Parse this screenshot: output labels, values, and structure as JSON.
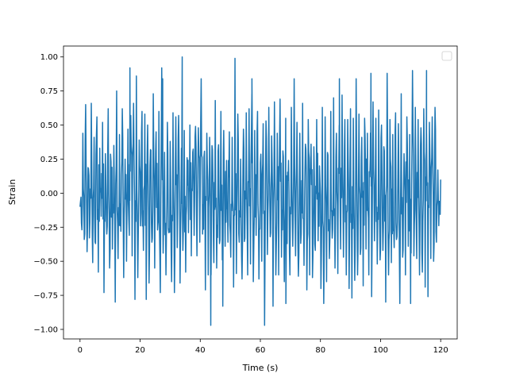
{
  "chart_data": {
    "type": "line",
    "title": "",
    "xlabel": "Time (s)",
    "ylabel": "Strain",
    "xlim": [
      -5.5,
      125.5
    ],
    "ylim": [
      -1.07,
      1.08
    ],
    "x_ticks": [
      0,
      20,
      40,
      60,
      80,
      100,
      120
    ],
    "x_tick_labels": [
      "0",
      "20",
      "40",
      "60",
      "80",
      "100",
      "120"
    ],
    "y_ticks": [
      -1.0,
      -0.75,
      -0.5,
      -0.25,
      0.0,
      0.25,
      0.5,
      0.75,
      1.0
    ],
    "y_tick_labels": [
      "−1.00",
      "−0.75",
      "−0.50",
      "−0.25",
      "0.00",
      "0.25",
      "0.50",
      "0.75",
      "1.00"
    ],
    "grid": false,
    "legend": {
      "placement": "top-right",
      "entries": []
    },
    "series": [
      {
        "color": "#1f77b4",
        "x_start": 0,
        "x_end": 120,
        "y_min": -0.97,
        "y_max": 1.0,
        "peak_points": [
          [
            34,
            1.0
          ],
          [
            43.5,
            -0.97
          ],
          [
            16.6,
            0.92
          ],
          [
            27.5,
            0.84
          ],
          [
            57.2,
            0.84
          ],
          [
            96.8,
            0.88
          ],
          [
            115.3,
            0.9
          ],
          [
            86.3,
            0.84
          ],
          [
            47.5,
            -0.83
          ],
          [
            68.5,
            -0.81
          ],
          [
            110,
            -0.81
          ]
        ],
        "values": [
          -0.1,
          -0.22,
          0.44,
          -0.34,
          0.65,
          -0.43,
          0.18,
          -0.21,
          0.66,
          -0.51,
          0.41,
          -0.37,
          0.56,
          -0.58,
          0.33,
          -0.17,
          0.52,
          -0.73,
          0.29,
          -0.3,
          0.62,
          -0.55,
          0.23,
          -0.41,
          0.35,
          -0.8,
          0.75,
          -0.48,
          0.43,
          -0.28,
          0.62,
          -0.62,
          0.25,
          -0.5,
          0.47,
          -0.31,
          0.57,
          -0.46,
          0.66,
          -0.78,
          0.86,
          -0.62,
          0.39,
          -0.24,
          0.6,
          -0.42,
          0.58,
          -0.78,
          0.5,
          -0.66,
          0.32,
          -0.36,
          0.73,
          -0.55,
          0.45,
          -0.27,
          0.6,
          -0.73,
          0.92,
          -0.44,
          0.3,
          -0.6,
          0.52,
          -0.29,
          0.38,
          -0.65,
          0.59,
          -0.73,
          0.56,
          -0.4,
          0.57,
          -0.66,
          0.33,
          -0.42,
          0.46,
          -0.58,
          0.26,
          -0.29,
          0.5,
          -0.46,
          0.3,
          -0.31,
          0.49,
          -0.46,
          0.48,
          -0.36,
          0.84,
          -0.3,
          0.27,
          -0.71,
          0.44,
          -0.6,
          0.41,
          -0.6,
          0.32,
          -0.51,
          0.68,
          -0.55,
          0.31,
          -0.37,
          0.6,
          -0.49,
          0.46,
          -0.39,
          0.24,
          -0.36,
          0.45,
          -0.47,
          0.41,
          -0.69,
          0.99,
          -0.59,
          0.58,
          -0.36,
          0.25,
          -0.63,
          0.47,
          -0.33,
          0.59,
          -0.6,
          0.62,
          -0.52,
          0.73,
          -0.65,
          0.46,
          -0.31,
          0.6,
          -0.63,
          0.22,
          -0.5,
          0.51,
          -0.97,
          0.53,
          -0.45,
          0.63,
          -0.32,
          0.42,
          -0.83,
          0.67,
          -0.6,
          0.44,
          -0.6,
          0.69,
          -0.47,
          0.31,
          -0.65,
          0.55,
          -0.37,
          0.24,
          -0.6,
          0.63,
          -0.39,
          0.84,
          -0.46,
          0.52,
          -0.61,
          0.44,
          -0.3,
          0.66,
          -0.53,
          0.36,
          -0.71,
          0.54,
          -0.6,
          0.36,
          -0.62,
          0.34,
          -0.42,
          0.54,
          -0.35,
          0.2,
          -0.7,
          0.63,
          -0.81,
          0.56,
          -0.65,
          0.28,
          -0.48,
          0.6,
          -0.33,
          0.7,
          -0.55,
          0.44,
          -0.59,
          0.5,
          -0.41,
          0.72,
          -0.47,
          0.54,
          -0.6,
          0.54,
          -0.7,
          0.62,
          -0.77,
          0.55,
          -0.64,
          0.84,
          -0.6,
          0.58,
          -0.45,
          0.41,
          -0.68,
          0.55,
          -0.41,
          0.44,
          -0.6,
          0.25,
          -0.76,
          0.67,
          -0.35,
          0.55,
          -0.52,
          0.61,
          -0.49,
          0.5,
          -0.42,
          0.31,
          -0.8,
          0.88,
          -0.6,
          0.54,
          -0.51,
          0.43,
          -0.4,
          0.59,
          -0.32,
          0.51,
          -0.81,
          0.73,
          -0.47,
          0.29,
          -0.6,
          0.56,
          -0.39,
          0.43,
          -0.44,
          0.9,
          -0.46,
          0.63,
          -0.48,
          0.54,
          -0.6,
          0.48,
          -0.58,
          0.62,
          -0.69,
          0.44,
          -0.76,
          0.52,
          -0.48,
          0.56,
          -0.5,
          0.63,
          -0.36,
          0.17,
          -0.06,
          0.1
        ]
      }
    ]
  }
}
